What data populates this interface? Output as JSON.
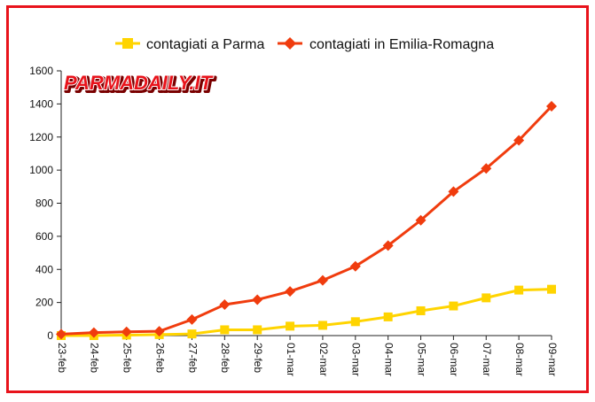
{
  "chart_data": {
    "type": "line",
    "title": "",
    "xlabel": "",
    "ylabel": "",
    "categories": [
      "23-feb",
      "24-feb",
      "25-feb",
      "26-feb",
      "27-feb",
      "28-feb",
      "29-feb",
      "01-mar",
      "02-mar",
      "03-mar",
      "04-mar",
      "05-mar",
      "06-mar",
      "07-mar",
      "08-mar",
      "09-mar"
    ],
    "ylim": [
      0,
      1600
    ],
    "yticks": [
      0,
      200,
      400,
      600,
      800,
      1000,
      1200,
      1400,
      1600
    ],
    "grid": false,
    "legend_position": "top",
    "series": [
      {
        "name": "contagiati a Parma",
        "color": "#ffd400",
        "marker": "square",
        "values": [
          0,
          0,
          3,
          6,
          10,
          35,
          35,
          57,
          62,
          84,
          113,
          150,
          179,
          228,
          275,
          280
        ]
      },
      {
        "name": "contagiati in Emilia-Romagna",
        "color": "#f03c0e",
        "marker": "diamond",
        "values": [
          9,
          18,
          23,
          26,
          97,
          187,
          217,
          267,
          334,
          419,
          544,
          697,
          870,
          1010,
          1180,
          1386
        ]
      }
    ]
  },
  "watermark": {
    "text": "PARMADAILY.IT",
    "fill_color": "#e8131b",
    "outline_color": "#ffffff"
  }
}
